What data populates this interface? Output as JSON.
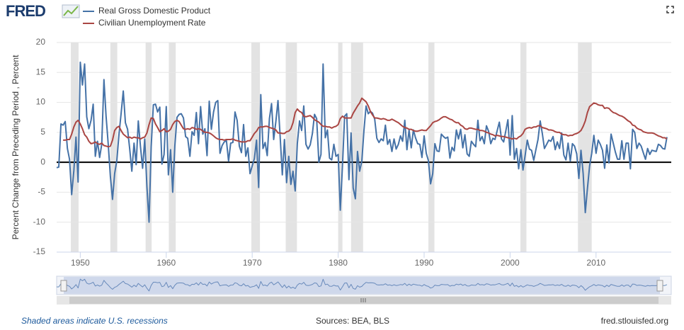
{
  "chart_data": {
    "type": "line",
    "logo": "FRED",
    "ylabel": "Percent Change from Preceding Period , Percent",
    "source_note": "Shaded areas indicate U.S. recessions",
    "sources": "Sources: BEA, BLS",
    "site": "fred.stlouisfed.org",
    "xlim": [
      1947.25,
      2018.75
    ],
    "xticks": [
      1950,
      1960,
      1970,
      1980,
      1990,
      2000,
      2010
    ],
    "ylim": [
      -15,
      20
    ],
    "yticks": [
      -15,
      -10,
      -5,
      0,
      5,
      10,
      15,
      20
    ],
    "grid": true,
    "recession_color": "#e3e3e3",
    "recessions": [
      [
        1948.9,
        1949.8
      ],
      [
        1953.5,
        1954.3
      ],
      [
        1957.6,
        1958.3
      ],
      [
        1960.3,
        1961.1
      ],
      [
        1969.9,
        1970.9
      ],
      [
        1973.9,
        1975.2
      ],
      [
        1980.0,
        1980.5
      ],
      [
        1981.5,
        1982.9
      ],
      [
        1990.5,
        1991.2
      ],
      [
        2001.2,
        2001.9
      ],
      [
        2007.9,
        2009.5
      ]
    ],
    "x": [
      1947.25,
      1947.5,
      1947.75,
      1948,
      1948.25,
      1948.5,
      1948.75,
      1949,
      1949.25,
      1949.5,
      1949.75,
      1950,
      1950.25,
      1950.5,
      1950.75,
      1951,
      1951.25,
      1951.5,
      1951.75,
      1952,
      1952.25,
      1952.5,
      1952.75,
      1953,
      1953.25,
      1953.5,
      1953.75,
      1954,
      1954.25,
      1954.5,
      1954.75,
      1955,
      1955.25,
      1955.5,
      1955.75,
      1956,
      1956.25,
      1956.5,
      1956.75,
      1957,
      1957.25,
      1957.5,
      1957.75,
      1958,
      1958.25,
      1958.5,
      1958.75,
      1959,
      1959.25,
      1959.5,
      1959.75,
      1960,
      1960.25,
      1960.5,
      1960.75,
      1961,
      1961.25,
      1961.5,
      1961.75,
      1962,
      1962.25,
      1962.5,
      1962.75,
      1963,
      1963.25,
      1963.5,
      1963.75,
      1964,
      1964.25,
      1964.5,
      1964.75,
      1965,
      1965.25,
      1965.5,
      1965.75,
      1966,
      1966.25,
      1966.5,
      1966.75,
      1967,
      1967.25,
      1967.5,
      1967.75,
      1968,
      1968.25,
      1968.5,
      1968.75,
      1969,
      1969.25,
      1969.5,
      1969.75,
      1970,
      1970.25,
      1970.5,
      1970.75,
      1971,
      1971.25,
      1971.5,
      1971.75,
      1972,
      1972.25,
      1972.5,
      1972.75,
      1973,
      1973.25,
      1973.5,
      1973.75,
      1974,
      1974.25,
      1974.5,
      1974.75,
      1975,
      1975.25,
      1975.5,
      1975.75,
      1976,
      1976.25,
      1976.5,
      1976.75,
      1977,
      1977.25,
      1977.5,
      1977.75,
      1978,
      1978.25,
      1978.5,
      1978.75,
      1979,
      1979.25,
      1979.5,
      1979.75,
      1980,
      1980.25,
      1980.5,
      1980.75,
      1981,
      1981.25,
      1981.5,
      1981.75,
      1982,
      1982.25,
      1982.5,
      1982.75,
      1983,
      1983.25,
      1983.5,
      1983.75,
      1984,
      1984.25,
      1984.5,
      1984.75,
      1985,
      1985.25,
      1985.5,
      1985.75,
      1986,
      1986.25,
      1986.5,
      1986.75,
      1987,
      1987.25,
      1987.5,
      1987.75,
      1988,
      1988.25,
      1988.5,
      1988.75,
      1989,
      1989.25,
      1989.5,
      1989.75,
      1990,
      1990.25,
      1990.5,
      1990.75,
      1991,
      1991.25,
      1991.5,
      1991.75,
      1992,
      1992.25,
      1992.5,
      1992.75,
      1993,
      1993.25,
      1993.5,
      1993.75,
      1994,
      1994.25,
      1994.5,
      1994.75,
      1995,
      1995.25,
      1995.5,
      1995.75,
      1996,
      1996.25,
      1996.5,
      1996.75,
      1997,
      1997.25,
      1997.5,
      1997.75,
      1998,
      1998.25,
      1998.5,
      1998.75,
      1999,
      1999.25,
      1999.5,
      1999.75,
      2000,
      2000.25,
      2000.5,
      2000.75,
      2001,
      2001.25,
      2001.5,
      2001.75,
      2002,
      2002.25,
      2002.5,
      2002.75,
      2003,
      2003.25,
      2003.5,
      2003.75,
      2004,
      2004.25,
      2004.5,
      2004.75,
      2005,
      2005.25,
      2005.5,
      2005.75,
      2006,
      2006.25,
      2006.5,
      2006.75,
      2007,
      2007.25,
      2007.5,
      2007.75,
      2008,
      2008.25,
      2008.5,
      2008.75,
      2009,
      2009.25,
      2009.5,
      2009.75,
      2010,
      2010.25,
      2010.5,
      2010.75,
      2011,
      2011.25,
      2011.5,
      2011.75,
      2012,
      2012.25,
      2012.5,
      2012.75,
      2013,
      2013.25,
      2013.5,
      2013.75,
      2014,
      2014.25,
      2014.5,
      2014.75,
      2015,
      2015.25,
      2015.5,
      2015.75,
      2016,
      2016.25,
      2016.5,
      2016.75,
      2017,
      2017.25,
      2017.5,
      2017.75,
      2018,
      2018.25
    ],
    "series": [
      {
        "name": "Real Gross Domestic Product",
        "color": "#4572a7",
        "values": [
          -0.9,
          -0.8,
          6.4,
          6.2,
          6.8,
          2.3,
          0.5,
          -5.4,
          -1.4,
          4.2,
          -3.3,
          16.7,
          12.9,
          16.4,
          7.6,
          5.6,
          7.0,
          9.7,
          1.0,
          3.5,
          0.8,
          3.0,
          13.8,
          7.7,
          3.1,
          -2.4,
          -6.2,
          -1.9,
          0.3,
          4.6,
          8.1,
          11.9,
          6.6,
          5.5,
          2.2,
          -1.5,
          3.2,
          -0.4,
          6.9,
          2.6,
          -1.0,
          3.9,
          -4.1,
          -10.0,
          2.6,
          9.6,
          9.7,
          8.4,
          9.2,
          -0.3,
          1.3,
          9.3,
          -2.1,
          2.1,
          -5.0,
          2.7,
          7.5,
          8.0,
          8.1,
          7.4,
          4.3,
          4.0,
          1.0,
          5.1,
          4.5,
          8.3,
          3.1,
          9.3,
          4.7,
          5.6,
          1.1,
          10.2,
          5.5,
          8.4,
          10.0,
          10.3,
          1.5,
          2.8,
          3.4,
          3.6,
          0.2,
          3.2,
          3.3,
          8.4,
          7.0,
          2.7,
          1.6,
          6.3,
          1.0,
          2.4,
          -1.9,
          -0.6,
          0.6,
          3.7,
          -4.2,
          11.3,
          2.3,
          3.3,
          1.1,
          7.3,
          9.8,
          3.8,
          6.8,
          10.3,
          4.4,
          -2.1,
          3.8,
          -3.4,
          1.0,
          -3.7,
          -1.5,
          -4.8,
          3.1,
          6.9,
          5.3,
          9.4,
          3.0,
          2.2,
          2.9,
          4.8,
          8.0,
          7.3,
          0.0,
          1.3,
          16.4,
          4.1,
          5.4,
          0.7,
          0.4,
          3.0,
          1.0,
          1.3,
          -8.0,
          -0.5,
          7.7,
          8.1,
          -2.9,
          4.9,
          -4.3,
          -6.1,
          1.8,
          -1.5,
          0.2,
          5.3,
          9.4,
          8.1,
          8.5,
          8.2,
          7.2,
          4.0,
          3.3,
          3.9,
          3.6,
          6.2,
          3.0,
          3.8,
          1.8,
          3.9,
          2.2,
          3.0,
          4.4,
          3.5,
          7.0,
          2.1,
          5.4,
          2.4,
          5.4,
          4.1,
          3.1,
          3.0,
          0.8,
          4.4,
          1.5,
          0.3,
          -3.6,
          -1.9,
          3.1,
          1.9,
          1.8,
          4.7,
          4.3,
          4.0,
          4.2,
          0.7,
          2.5,
          1.9,
          5.4,
          3.9,
          5.5,
          2.4,
          4.6,
          1.4,
          1.0,
          3.5,
          3.0,
          2.6,
          7.0,
          3.6,
          4.3,
          3.1,
          6.1,
          5.2,
          3.1,
          4.0,
          3.8,
          5.3,
          6.7,
          3.9,
          3.4,
          5.2,
          7.1,
          1.2,
          7.8,
          0.5,
          2.3,
          -1.1,
          2.1,
          -1.3,
          1.1,
          3.7,
          2.2,
          2.0,
          0.3,
          2.1,
          3.8,
          6.9,
          4.8,
          2.3,
          3.0,
          3.7,
          3.5,
          4.3,
          2.1,
          3.4,
          2.3,
          4.9,
          1.2,
          0.4,
          3.2,
          0.2,
          3.1,
          2.7,
          1.4,
          -2.7,
          2.0,
          -1.9,
          -8.4,
          -4.4,
          -0.6,
          1.5,
          4.5,
          1.5,
          3.7,
          3.0,
          2.0,
          -1.0,
          2.9,
          -0.1,
          4.7,
          3.2,
          1.7,
          0.5,
          0.5,
          3.6,
          0.5,
          3.2,
          3.2,
          -1.1,
          5.5,
          5.0,
          2.3,
          3.2,
          2.7,
          1.6,
          0.5,
          2.3,
          1.3,
          2.0,
          1.9,
          1.8,
          3.0,
          2.8,
          2.3,
          2.2,
          4.2
        ]
      },
      {
        "name": "Civilian Unemployment Rate",
        "color": "#aa4643",
        "values": [
          null,
          null,
          null,
          3.7,
          3.7,
          3.8,
          3.8,
          4.7,
          5.9,
          6.7,
          7.0,
          6.4,
          5.6,
          4.6,
          4.2,
          3.5,
          3.1,
          3.2,
          3.4,
          3.1,
          3.0,
          3.2,
          2.8,
          2.7,
          2.6,
          2.7,
          3.7,
          5.3,
          5.8,
          6.0,
          5.3,
          4.7,
          4.4,
          4.1,
          4.2,
          4.0,
          4.2,
          4.1,
          4.1,
          3.9,
          4.1,
          4.2,
          4.9,
          6.3,
          7.4,
          7.3,
          6.4,
          5.8,
          5.1,
          5.3,
          5.6,
          5.1,
          5.2,
          5.5,
          6.3,
          6.8,
          7.0,
          6.8,
          6.2,
          5.6,
          5.5,
          5.6,
          5.5,
          5.8,
          5.7,
          5.5,
          5.6,
          5.5,
          5.2,
          5.0,
          5.0,
          4.9,
          4.7,
          4.4,
          4.1,
          3.9,
          3.8,
          3.8,
          3.7,
          3.8,
          3.8,
          3.8,
          3.9,
          3.7,
          3.6,
          3.5,
          3.4,
          3.4,
          3.4,
          3.6,
          3.6,
          4.2,
          4.8,
          5.2,
          5.8,
          5.9,
          5.9,
          6.0,
          6.0,
          5.8,
          5.7,
          5.6,
          5.4,
          4.9,
          4.9,
          4.8,
          4.8,
          5.1,
          5.2,
          5.6,
          6.6,
          8.3,
          8.9,
          8.5,
          8.3,
          7.7,
          7.6,
          7.7,
          7.8,
          7.5,
          7.1,
          6.9,
          6.7,
          6.3,
          6.0,
          6.0,
          5.9,
          5.9,
          5.7,
          5.9,
          6.0,
          6.3,
          7.3,
          7.7,
          7.4,
          7.4,
          7.4,
          7.4,
          8.2,
          8.8,
          9.4,
          9.9,
          10.7,
          10.4,
          10.1,
          9.4,
          8.5,
          7.9,
          7.4,
          7.4,
          7.3,
          7.2,
          7.3,
          7.2,
          7.0,
          7.0,
          7.2,
          7.0,
          6.8,
          6.6,
          6.3,
          6.0,
          5.8,
          5.7,
          5.5,
          5.5,
          5.3,
          5.2,
          5.2,
          5.3,
          5.4,
          5.3,
          5.3,
          5.7,
          6.1,
          6.6,
          6.8,
          6.9,
          7.1,
          7.4,
          7.6,
          7.6,
          7.4,
          7.2,
          7.1,
          6.8,
          6.6,
          6.6,
          6.2,
          6.0,
          5.6,
          5.5,
          5.7,
          5.7,
          5.6,
          5.5,
          5.5,
          5.3,
          5.3,
          5.2,
          5.0,
          4.9,
          4.7,
          4.6,
          4.4,
          4.5,
          4.4,
          4.3,
          4.3,
          4.2,
          4.1,
          4.0,
          3.9,
          4.0,
          3.9,
          4.2,
          4.4,
          4.8,
          5.5,
          5.7,
          5.8,
          5.7,
          5.9,
          5.9,
          6.1,
          6.1,
          5.8,
          5.7,
          5.6,
          5.4,
          5.4,
          5.3,
          5.1,
          5.0,
          5.0,
          4.7,
          4.6,
          4.6,
          4.4,
          4.5,
          4.5,
          4.7,
          4.8,
          5.0,
          5.3,
          6.0,
          6.9,
          8.3,
          9.3,
          9.6,
          9.9,
          9.8,
          9.6,
          9.5,
          9.5,
          9.0,
          9.1,
          9.0,
          8.6,
          8.3,
          8.2,
          8.0,
          7.8,
          7.7,
          7.5,
          7.2,
          6.9,
          6.7,
          6.2,
          6.1,
          5.7,
          5.5,
          5.4,
          5.1,
          5.0,
          4.9,
          4.9,
          4.9,
          4.8,
          4.6,
          4.4,
          4.3,
          4.1,
          4.1,
          3.9
        ]
      }
    ]
  }
}
